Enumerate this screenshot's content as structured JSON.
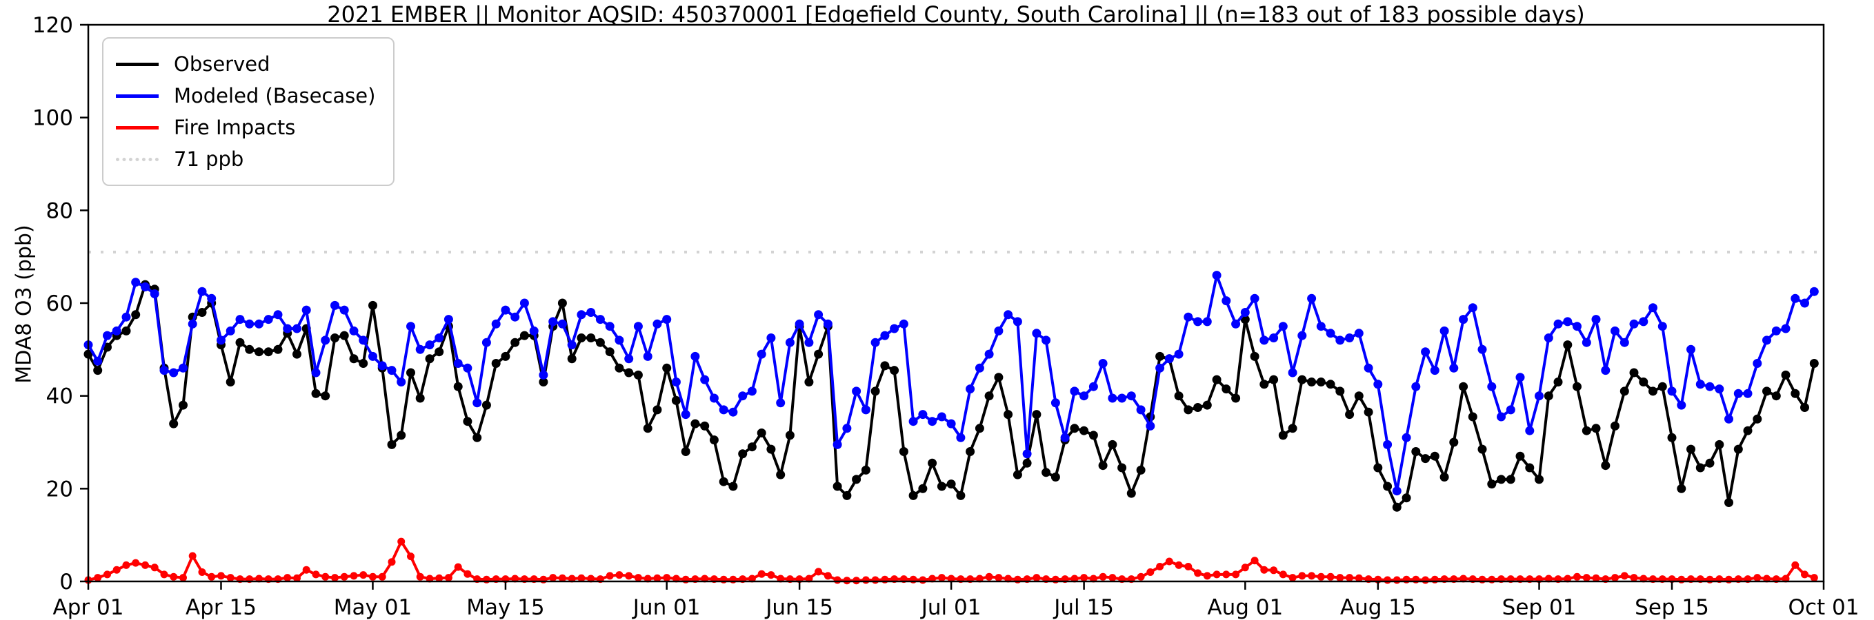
{
  "title": "2021 EMBER || Monitor AQSID: 450370001 [Edgefield County, South Carolina] || (n=183 out of 183 possible days)",
  "y_axis": {
    "label": "MDA8 O3 (ppb)",
    "ticks": [
      0,
      20,
      40,
      60,
      80,
      100,
      120
    ],
    "min": 0,
    "max": 120
  },
  "x_axis": {
    "tick_labels": [
      "Apr 01",
      "Apr 15",
      "May 01",
      "May 15",
      "Jun 01",
      "Jun 15",
      "Jul 01",
      "Jul 15",
      "Aug 01",
      "Aug 15",
      "Sep 01",
      "Sep 15",
      "Oct 01"
    ],
    "tick_day_offsets": [
      0,
      14,
      30,
      44,
      61,
      75,
      91,
      105,
      122,
      136,
      153,
      167,
      183
    ],
    "start_date": "Apr 01",
    "end_date": "Oct 01",
    "total_days": 183
  },
  "legend": {
    "items": [
      {
        "label": "Observed",
        "color": "#000000",
        "style": "solid"
      },
      {
        "label": "Modeled (Basecase)",
        "color": "#0000ff",
        "style": "solid"
      },
      {
        "label": "Fire Impacts",
        "color": "#ff0000",
        "style": "solid"
      },
      {
        "label": "71 ppb",
        "color": "#d3d3d3",
        "style": "dotted"
      }
    ]
  },
  "threshold": {
    "value": 71,
    "label": "71 ppb",
    "color": "#d3d3d3"
  },
  "colors": {
    "observed": "#000000",
    "modeled": "#0000ff",
    "fire": "#ff0000",
    "threshold": "#d3d3d3",
    "frame": "#000000",
    "background": "#ffffff"
  },
  "chart_data": {
    "type": "line",
    "title": "2021 EMBER || Monitor AQSID: 450370001 [Edgefield County, South Carolina] || (n=183 out of 183 possible days)",
    "xlabel": "",
    "ylabel": "MDA8 O3 (ppb)",
    "ylim": [
      0,
      120
    ],
    "x_unit": "days since Apr 01 (daily values, Apr 01 - Sep 30, n=183)",
    "grid": false,
    "legend_position": "upper left",
    "threshold_line": {
      "value": 71,
      "label": "71 ppb",
      "style": "dotted",
      "color": "#d3d3d3"
    },
    "x_tick_labels": [
      "Apr 01",
      "Apr 15",
      "May 01",
      "May 15",
      "Jun 01",
      "Jun 15",
      "Jul 01",
      "Jul 15",
      "Aug 01",
      "Aug 15",
      "Sep 01",
      "Sep 15",
      "Oct 01"
    ],
    "x_tick_day_offsets": [
      0,
      14,
      30,
      44,
      61,
      75,
      91,
      105,
      122,
      136,
      153,
      167,
      183
    ],
    "series": [
      {
        "name": "Observed",
        "color": "#000000",
        "marker": "circle",
        "values": [
          49,
          45.5,
          50.5,
          53,
          54,
          57.5,
          64,
          63,
          46,
          34,
          38,
          57,
          58,
          60,
          51,
          43,
          51.5,
          50,
          49.5,
          49.5,
          50,
          53.5,
          49,
          54.5,
          40.5,
          40,
          52.5,
          53,
          48,
          47,
          59.5,
          46,
          29.5,
          31.5,
          45,
          39.5,
          48,
          49.5,
          55,
          42,
          34.5,
          31,
          38,
          47,
          48.5,
          51.5,
          53,
          53,
          43,
          55,
          60,
          48,
          52.5,
          52.5,
          51.5,
          49.5,
          46,
          45,
          44.5,
          33,
          37,
          46,
          39,
          28,
          34,
          33.5,
          30.5,
          21.5,
          20.5,
          27.5,
          29,
          32,
          28.5,
          23,
          31.5,
          55,
          43,
          49,
          55,
          20.5,
          18.5,
          22,
          24,
          41,
          46.5,
          45.5,
          28,
          18.5,
          20,
          25.5,
          20.5,
          21,
          18.5,
          28,
          33,
          40,
          44,
          36,
          23,
          25.5,
          36,
          23.5,
          22.5,
          30.5,
          33,
          32.5,
          31.5,
          25,
          29.5,
          24.5,
          19,
          24,
          35.5,
          48.5,
          48,
          40,
          37,
          37.5,
          38,
          43.5,
          41.5,
          39.5,
          56.5,
          48.5,
          42.5,
          43.5,
          31.5,
          33,
          43.5,
          43,
          43,
          42.5,
          41,
          36,
          40,
          36.5,
          24.5,
          20.5,
          16,
          18,
          28,
          26.5,
          27,
          22.5,
          30,
          42,
          35.5,
          28.5,
          21,
          22,
          22,
          27,
          24.5,
          22,
          40,
          43,
          51,
          42,
          32.5,
          33,
          25,
          33.5,
          41,
          45,
          43,
          41,
          42,
          31,
          20,
          28.5,
          24.5,
          25.5,
          29.5,
          17,
          28.5,
          32.5,
          35,
          41,
          40,
          44.5,
          40.5,
          37.5,
          47
        ]
      },
      {
        "name": "Modeled (Basecase)",
        "color": "#0000ff",
        "marker": "circle",
        "values": [
          51,
          47.5,
          53,
          54,
          57,
          64.5,
          63.5,
          62,
          45.5,
          45,
          46,
          55.5,
          62.5,
          61,
          52,
          54,
          56.5,
          55.5,
          55.5,
          56.5,
          57.5,
          54.5,
          54.5,
          58.5,
          45,
          52,
          59.5,
          58.5,
          54,
          52,
          48.5,
          46.5,
          45.5,
          43,
          55,
          50,
          51,
          52.5,
          56.5,
          47,
          46,
          38.5,
          51.5,
          55.5,
          58.5,
          57,
          60,
          54,
          44.5,
          56,
          55.5,
          51,
          57.5,
          58,
          56.5,
          55,
          52,
          48,
          55,
          48.5,
          55.5,
          56.5,
          43,
          36,
          48.5,
          43.5,
          39.5,
          37,
          36.5,
          40,
          41,
          49,
          52.5,
          38.5,
          51.5,
          55.5,
          51.5,
          57.5,
          55.5,
          29.5,
          33,
          41,
          37,
          51.5,
          53,
          54.5,
          55.5,
          34.5,
          36,
          34.5,
          35.5,
          34,
          31,
          41.5,
          46,
          49,
          54,
          57.5,
          56,
          27.5,
          53.5,
          52,
          38.5,
          31,
          41,
          40,
          42,
          47,
          39.5,
          39.5,
          40,
          37,
          33.5,
          46,
          48,
          49,
          57,
          56,
          56,
          66,
          60.5,
          55.5,
          58,
          61,
          52,
          52.5,
          55,
          45,
          53,
          61,
          55,
          53.5,
          52,
          52.5,
          53.5,
          46,
          42.5,
          29.5,
          19.5,
          31,
          42,
          49.5,
          45.5,
          54,
          46,
          56.5,
          59,
          50,
          42,
          35.5,
          37,
          44,
          32.5,
          40,
          52.5,
          55.5,
          56,
          55,
          51.5,
          56.5,
          45.5,
          54,
          51.5,
          55.5,
          56,
          59,
          55,
          41,
          38,
          50,
          42.5,
          42,
          41.5,
          35,
          40.5,
          40.5,
          47,
          52,
          54,
          54.5,
          61,
          60,
          62.5
        ]
      },
      {
        "name": "Fire Impacts",
        "color": "#ff0000",
        "marker": "circle",
        "values": [
          0.3,
          0.8,
          1.5,
          2.5,
          3.5,
          4,
          3.5,
          3,
          1.5,
          1,
          0.8,
          5.5,
          2,
          1,
          1.2,
          0.8,
          0.5,
          0.5,
          0.6,
          0.5,
          0.5,
          0.8,
          0.7,
          2.5,
          1.5,
          1,
          0.8,
          1,
          1.2,
          1.4,
          1,
          1,
          4.2,
          8.6,
          5.4,
          1,
          0.6,
          0.7,
          0.8,
          3.1,
          1.6,
          0.5,
          0.4,
          0.5,
          0.5,
          0.6,
          0.5,
          0.5,
          0.4,
          0.8,
          0.7,
          0.6,
          0.7,
          0.6,
          0.5,
          1.2,
          1.4,
          1.2,
          0.8,
          0.6,
          0.7,
          0.8,
          0.6,
          0.4,
          0.5,
          0.6,
          0.5,
          0.4,
          0.4,
          0.5,
          0.6,
          1.6,
          1.4,
          0.6,
          0.5,
          0.5,
          0.6,
          2.1,
          1.2,
          0.3,
          0.2,
          0.2,
          0.3,
          0.3,
          0.4,
          0.5,
          0.5,
          0.4,
          0.3,
          0.6,
          0.8,
          0.6,
          0.5,
          0.5,
          0.6,
          1,
          0.8,
          0.6,
          0.4,
          0.5,
          0.8,
          0.5,
          0.4,
          0.5,
          0.6,
          0.8,
          0.6,
          1,
          0.8,
          0.5,
          0.5,
          1,
          2,
          3.2,
          4.3,
          3.5,
          3.2,
          1.8,
          1.2,
          1.5,
          1.5,
          1.5,
          3,
          4.5,
          2.5,
          2.4,
          1.5,
          0.8,
          1.2,
          1.2,
          1,
          1,
          0.8,
          0.8,
          0.7,
          0.5,
          0.4,
          0.3,
          0.3,
          0.4,
          0.4,
          0.3,
          0.4,
          0.5,
          0.5,
          0.6,
          0.5,
          0.4,
          0.4,
          0.5,
          0.5,
          0.5,
          0.5,
          0.5,
          0.6,
          0.5,
          0.6,
          1,
          0.8,
          0.7,
          0.5,
          0.8,
          1.2,
          0.8,
          0.6,
          0.5,
          0.5,
          0.5,
          0.4,
          0.5,
          0.5,
          0.4,
          0.5,
          0.4,
          0.5,
          0.5,
          0.8,
          0.6,
          0.5,
          0.6,
          3.5,
          1.5,
          0.8
        ]
      }
    ]
  }
}
